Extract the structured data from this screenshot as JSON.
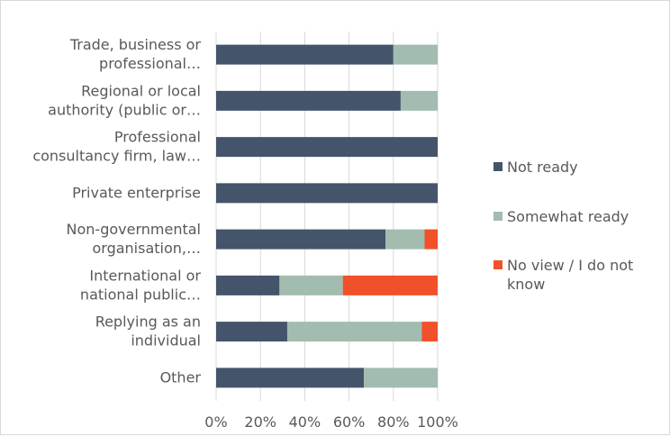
{
  "chart_data": {
    "type": "bar",
    "orientation": "horizontal",
    "stacked": "percent",
    "categories": [
      [
        "Trade, business or",
        "professional…"
      ],
      [
        "Regional or local",
        "authority (public or…"
      ],
      [
        "Professional",
        "consultancy firm, law…"
      ],
      [
        "Private enterprise"
      ],
      [
        "Non-governmental",
        "organisation,…"
      ],
      [
        "International or",
        "national public…"
      ],
      [
        "Replying as an",
        "individual"
      ],
      [
        "Other"
      ]
    ],
    "series": [
      {
        "name": "Not ready",
        "color": "#44546a",
        "values": [
          80,
          83.3,
          100,
          100,
          76.5,
          28.6,
          32.1,
          66.7
        ]
      },
      {
        "name": "Somewhat ready",
        "color": "#a2bcb0",
        "values": [
          20,
          16.7,
          0,
          0,
          17.6,
          28.6,
          60.7,
          33.3
        ]
      },
      {
        "name": "No view / I do not know",
        "color": "#f0512a",
        "values": [
          0,
          0,
          0,
          0,
          5.9,
          42.8,
          7.2,
          0
        ]
      }
    ],
    "xlim": [
      0,
      100
    ],
    "xticks": [
      "0%",
      "20%",
      "40%",
      "60%",
      "80%",
      "100%"
    ],
    "grid": "vertical",
    "legend": {
      "position": "right",
      "entries": [
        [
          "Not ready"
        ],
        [
          "Somewhat ready"
        ],
        [
          "No view / I do not",
          "know"
        ]
      ]
    },
    "title": "",
    "xlabel": "",
    "ylabel": ""
  }
}
